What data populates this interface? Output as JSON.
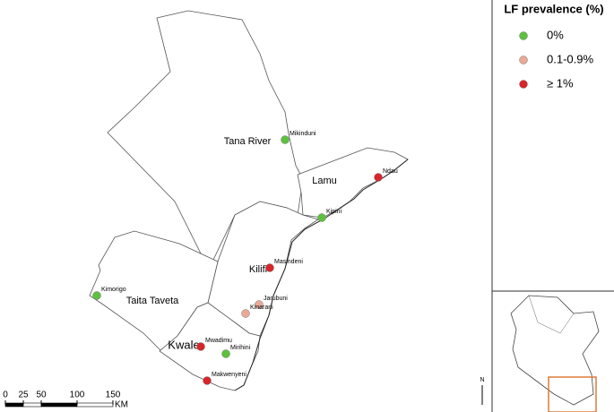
{
  "legend": {
    "title": "LF prevalence (%)",
    "items": [
      {
        "label": "0%",
        "color": "#5cc13c"
      },
      {
        "label": "0.1-0.9%",
        "color": "#e9a995"
      },
      {
        "label": "≥ 1%",
        "color": "#d8262a"
      }
    ]
  },
  "counties": [
    "Tana River",
    "Lamu",
    "Kilifi",
    "Taita Taveta",
    "Kwale"
  ],
  "sites": [
    {
      "name": "Mikinduni",
      "legend_item": 0
    },
    {
      "name": "Ndau",
      "legend_item": 2
    },
    {
      "name": "Kipini",
      "legend_item": 0
    },
    {
      "name": "Masindeni",
      "legend_item": 2
    },
    {
      "name": "Jarubuni",
      "legend_item": 1
    },
    {
      "name": "Kinarani",
      "legend_item": 1
    },
    {
      "name": "Kimorigo",
      "legend_item": 0
    },
    {
      "name": "Mwadimu",
      "legend_item": 2
    },
    {
      "name": "Mirihini",
      "legend_item": 0
    },
    {
      "name": "Makwenyeni",
      "legend_item": 2
    }
  ],
  "scale_bar": {
    "ticks": [
      0,
      25,
      50,
      100,
      150
    ],
    "unit": "KM"
  },
  "north": "N"
}
